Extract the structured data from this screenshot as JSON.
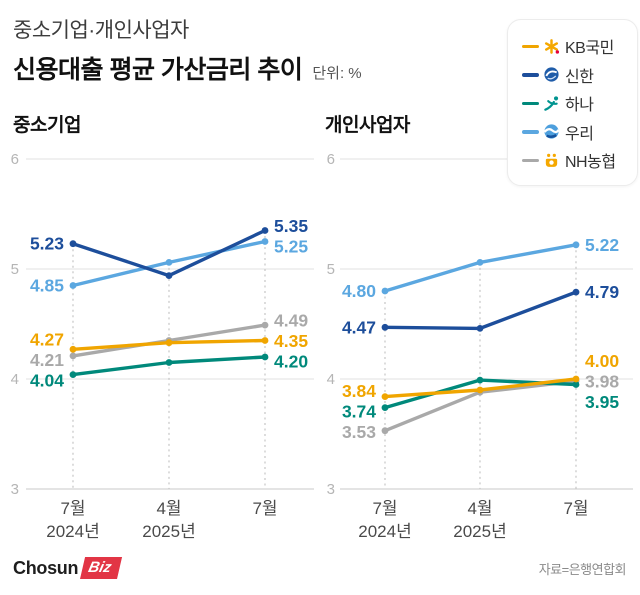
{
  "header": {
    "title_line1": "중소기업·개인사업자",
    "title_line2": "신용대출 평균 가산금리 추이",
    "unit_label": "단위: %"
  },
  "legend": {
    "items": [
      {
        "label": "KB국민",
        "color": "#F0A500"
      },
      {
        "label": "신한",
        "color": "#1D4E9B"
      },
      {
        "label": "하나",
        "color": "#00897B"
      },
      {
        "label": "우리",
        "color": "#5BA7E0"
      },
      {
        "label": "NH농협",
        "color": "#A9A9A9"
      }
    ]
  },
  "chart_data": [
    {
      "type": "line",
      "title": "중소기업",
      "categories": [
        "7월",
        "4월",
        "7월"
      ],
      "category_years": [
        "2024년",
        "2025년",
        ""
      ],
      "ylim": [
        3,
        6
      ],
      "yticks": [
        6,
        5,
        4,
        3
      ],
      "unit": "%",
      "grid": true,
      "series": [
        {
          "name": "KB국민",
          "color": "#F0A500",
          "values": [
            4.27,
            4.33,
            4.35
          ]
        },
        {
          "name": "신한",
          "color": "#1D4E9B",
          "values": [
            5.23,
            4.94,
            5.35
          ]
        },
        {
          "name": "하나",
          "color": "#00897B",
          "values": [
            4.04,
            4.15,
            4.2
          ]
        },
        {
          "name": "우리",
          "color": "#5BA7E0",
          "values": [
            4.85,
            5.06,
            5.25
          ]
        },
        {
          "name": "NH농협",
          "color": "#A9A9A9",
          "values": [
            4.21,
            4.35,
            4.49
          ]
        }
      ],
      "labeled_points": "first and last of each series, 2 decimals"
    },
    {
      "type": "line",
      "title": "개인사업자",
      "categories": [
        "7월",
        "4월",
        "7월"
      ],
      "category_years": [
        "2024년",
        "2025년",
        ""
      ],
      "ylim": [
        3,
        6
      ],
      "yticks": [
        6,
        5,
        4,
        3
      ],
      "unit": "%",
      "grid": true,
      "series": [
        {
          "name": "KB국민",
          "color": "#F0A500",
          "values": [
            3.84,
            3.9,
            4.0
          ]
        },
        {
          "name": "신한",
          "color": "#1D4E9B",
          "values": [
            4.47,
            4.46,
            4.79
          ]
        },
        {
          "name": "하나",
          "color": "#00897B",
          "values": [
            3.74,
            3.99,
            3.95
          ]
        },
        {
          "name": "우리",
          "color": "#5BA7E0",
          "values": [
            4.8,
            5.06,
            5.22
          ]
        },
        {
          "name": "NH농협",
          "color": "#A9A9A9",
          "values": [
            3.53,
            3.88,
            3.98
          ]
        }
      ],
      "labeled_points": "first and last of each series, 2 decimals"
    }
  ],
  "footer": {
    "logo_chosun": "Chosun",
    "logo_biz": "Biz",
    "source": "자료=은행연합회"
  }
}
